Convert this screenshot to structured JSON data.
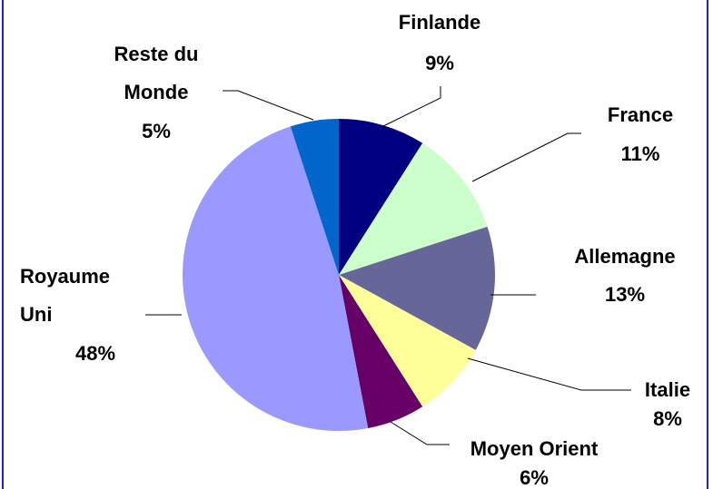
{
  "chart_data": {
    "type": "pie",
    "categories": [
      "Finlande",
      "France",
      "Allemagne",
      "Italie",
      "Moyen Orient",
      "Royaume Uni",
      "Reste du Monde"
    ],
    "values": [
      9,
      11,
      13,
      8,
      6,
      48,
      5
    ],
    "value_labels": [
      "9%",
      "11%",
      "13%",
      "8%",
      "6%",
      "48%",
      "5%"
    ],
    "colors": [
      "#000080",
      "#ccffcc",
      "#666699",
      "#ffff99",
      "#660066",
      "#9999ff",
      "#0066cc"
    ]
  }
}
